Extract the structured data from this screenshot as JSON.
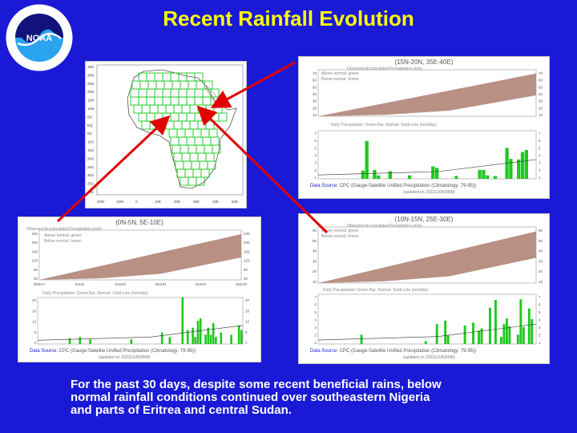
{
  "slide": {
    "title": "Recent Rainfall Evolution",
    "caption_lines": [
      "For the past 30 days, despite some recent beneficial rains, below",
      "normal rainfall conditions continued  over southeastern Nigeria",
      "and  parts of Eritrea and central Sudan."
    ],
    "logo_text": "NOAA",
    "colors": {
      "background": "#1a1ad6",
      "title": "#ffff00",
      "arrows": "#e00000",
      "area": "#b89084",
      "bars": "#1ec81e"
    }
  },
  "map": {
    "lat_labels": [
      "35N",
      "30N",
      "25N",
      "20N",
      "15N",
      "10N",
      "5N",
      "EQ",
      "5S",
      "10S",
      "15S",
      "20S",
      "25S",
      "30S",
      "35S",
      "40S"
    ],
    "lon_labels": [
      "20W",
      "10W",
      "0",
      "10E",
      "20E",
      "30E",
      "40E",
      "50E"
    ]
  },
  "charts": {
    "top_right": {
      "region": "(15N-20N, 35E-40E)",
      "accum_title": "Observed Accumulated Precipitation (mm)",
      "legend": [
        "Above normal: green",
        "Below normal: brown"
      ],
      "daily_title": "Daily Precipitation: Green Bar, Normal: Solid Line (mm/day)",
      "source": "Data Source:",
      "source_rest": "CPC (Gauge-Satellite Unified Precipitation (Climatology: 79-95))",
      "updated": "(updated on 20232JUN2008)",
      "accum_y_ticks": [
        "70",
        "60",
        "50",
        "40",
        "30",
        "20",
        "10"
      ],
      "daily_y_ticks": [
        "7",
        "6",
        "5",
        "4",
        "3",
        "2",
        "1"
      ],
      "daily_values": [
        0,
        0,
        0,
        0,
        0,
        0,
        0,
        0,
        0,
        0,
        0,
        1.2,
        5.5,
        0,
        1.3,
        0.5,
        0,
        0,
        1.1,
        0,
        0,
        0,
        0,
        0.5,
        0,
        0,
        0,
        0,
        0,
        1.8,
        1.6,
        0,
        0,
        0,
        0,
        0.4,
        0,
        0,
        0,
        0,
        0,
        1.3,
        1.3,
        0.5,
        0,
        0.4,
        0,
        0,
        4.5,
        2.9,
        0,
        2.8,
        3.9,
        4.2,
        0,
        0
      ]
    },
    "bottom_left": {
      "region": "(0N-5N, 5E-10E)",
      "accum_title": "Observed Accumulated Precipitation (mm)",
      "legend": [
        "Above normal: green",
        "Below normal: brown"
      ],
      "daily_title": "Daily Precipitation: Green Bar, Normal: Solid Line (mm/day)",
      "source": "Data Source:",
      "source_rest": "CPC (Gauge-Satellite Unified Precipitation (Climatology: 79-95))",
      "updated": "(updated on 20232JUN2008)",
      "accum_y_ticks": [
        "240",
        "200",
        "160",
        "120",
        "80",
        "40"
      ],
      "daily_y_ticks": [
        "20",
        "16",
        "12",
        "8",
        "4"
      ],
      "x_ticks": [
        "30MAY",
        "5JUN",
        "10JUN",
        "15JUN",
        "20JUN",
        "25JUN"
      ],
      "daily_values": [
        0,
        0,
        0,
        0,
        0,
        0,
        0,
        0,
        0,
        0,
        0,
        0,
        2.5,
        0,
        0,
        0,
        3,
        0,
        0,
        0,
        2,
        0,
        0,
        0,
        0,
        0,
        0,
        0,
        0,
        0,
        0,
        0,
        0,
        0,
        0,
        0,
        2,
        0,
        0,
        0,
        0,
        0,
        0,
        0,
        0,
        0,
        0,
        0,
        5,
        0,
        0,
        3,
        0,
        0,
        0,
        0,
        20,
        0,
        6,
        0,
        7,
        3,
        10,
        11,
        0,
        4,
        7,
        4,
        9,
        3,
        0,
        5,
        0,
        0,
        0,
        4,
        0,
        0,
        8,
        6
      ]
    },
    "bottom_right": {
      "region": "(10N-15N, 25E-30E)",
      "accum_title": "Observed Accumulated Precipitation (mm)",
      "legend": [
        "Above normal: green",
        "Below normal: brown"
      ],
      "daily_title": "Daily Precipitation: Green Bar, Normal: Solid Line (mm/day)",
      "source": "Data Source:",
      "source_rest": "CPC (Gauge-Satellite Unified Precipitation (Climatology: 79-95))",
      "updated": "(updated on 20232JUN2008)",
      "accum_y_ticks": [
        "60",
        "50",
        "40",
        "30",
        "20",
        "10"
      ],
      "daily_y_ticks": [
        "7",
        "6",
        "5",
        "4",
        "3",
        "2",
        "1"
      ],
      "daily_values": [
        0,
        0,
        0,
        0,
        0,
        0,
        0,
        0,
        0,
        0,
        0,
        0,
        0,
        0,
        0,
        1.3,
        0,
        0,
        0,
        0,
        0,
        0,
        0,
        0,
        0,
        0,
        0,
        0,
        0,
        0,
        0,
        0,
        0,
        0,
        0,
        0,
        0,
        0,
        0.4,
        0,
        0,
        0,
        2.8,
        0,
        0,
        3.3,
        1.2,
        0,
        0,
        0,
        0,
        0,
        2.6,
        0,
        0,
        3,
        0,
        1.9,
        2.2,
        0,
        0,
        5.1,
        0,
        6.2,
        0,
        1,
        2.8,
        3.6,
        2.5,
        0,
        0,
        1.3,
        6.3,
        2.4,
        0,
        5,
        3.5,
        0
      ]
    }
  }
}
